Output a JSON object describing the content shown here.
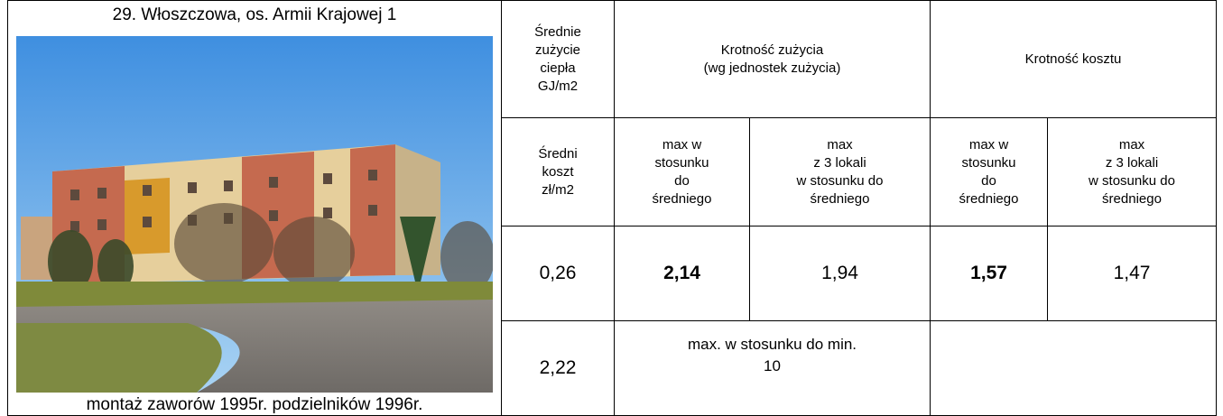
{
  "left": {
    "title": "29. Włoszczowa, os. Armii Krajowej 1",
    "caption": "montaż zaworów 1995r. podzielników  1996r."
  },
  "table": {
    "header": {
      "avg_heat": [
        "Średnie",
        "zużycie",
        "ciepła",
        "GJ/m2"
      ],
      "usage_multiple": [
        "Krotność zużycia",
        "(wg jednostek zużycia)"
      ],
      "cost_multiple": [
        "Krotność  kosztu"
      ]
    },
    "subheader": {
      "avg_cost": [
        "Średni",
        "koszt",
        "zł/m2"
      ],
      "usage_max_avg": [
        "max w",
        "stosunku",
        "do",
        "średniego"
      ],
      "usage_max3_avg": [
        "max",
        "z 3 lokali",
        "w stosunku do",
        "średniego"
      ],
      "cost_max_avg": [
        "max w",
        "stosunku",
        "do",
        "średniego"
      ],
      "cost_max3_avg": [
        "max",
        "z 3 lokali",
        "w stosunku do",
        "średniego"
      ]
    },
    "values": {
      "avg_heat": "0,26",
      "usage_max_avg": "2,14",
      "usage_max3_avg": "1,94",
      "cost_max_avg": "1,57",
      "cost_max3_avg": "1,47",
      "avg_cost": "2,22",
      "usage_max_min_label": "max. w stosunku do min.",
      "usage_max_min": "10"
    }
  }
}
